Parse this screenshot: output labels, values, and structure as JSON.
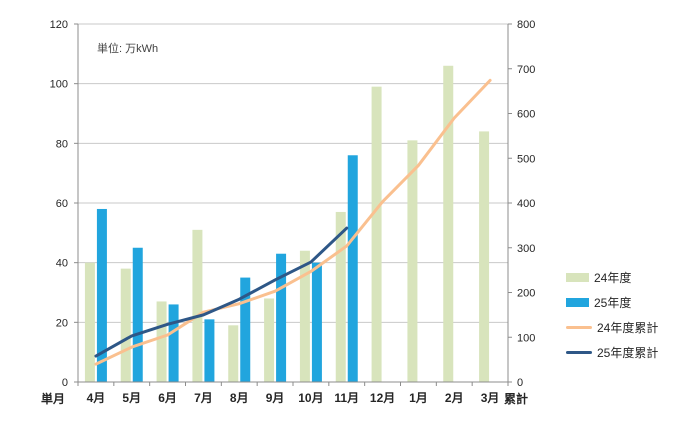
{
  "chart_data": {
    "type": "combo-bar-line",
    "title": "単位: 万kWh",
    "categories": [
      "4月",
      "5月",
      "6月",
      "7月",
      "8月",
      "9月",
      "10月",
      "11月",
      "12月",
      "1月",
      "2月",
      "3月"
    ],
    "series": [
      {
        "name": "24年度",
        "type": "bar",
        "axis": "left",
        "color": "#d8e4bc",
        "values": [
          40,
          38,
          27,
          51,
          19,
          28,
          44,
          57,
          99,
          81,
          106,
          84
        ]
      },
      {
        "name": "25年度",
        "type": "bar",
        "axis": "left",
        "color": "#21a5de",
        "values": [
          58,
          45,
          26,
          21,
          35,
          43,
          40,
          76,
          null,
          null,
          null,
          null
        ]
      },
      {
        "name": "24年度累計",
        "type": "line",
        "axis": "right",
        "color": "#fac08f",
        "values": [
          40,
          78,
          105,
          156,
          175,
          203,
          247,
          304,
          403,
          484,
          590,
          674
        ]
      },
      {
        "name": "25年度累計",
        "type": "line",
        "axis": "right",
        "color": "#2e5787",
        "values": [
          58,
          103,
          129,
          150,
          185,
          228,
          268,
          344,
          null,
          null,
          null,
          null
        ]
      }
    ],
    "left_axis": {
      "label": "単月",
      "min": 0,
      "max": 120,
      "step": 20,
      "ticks": [
        "0",
        "20",
        "40",
        "60",
        "80",
        "100",
        "120"
      ]
    },
    "right_axis": {
      "label": "累計",
      "min": 0,
      "max": 800,
      "step": 100,
      "ticks": [
        "0",
        "100",
        "200",
        "300",
        "400",
        "500",
        "600",
        "700",
        "800"
      ]
    },
    "grid": true,
    "legend_position": "right",
    "colors": {
      "gridline": "#c9c9c9",
      "axis": "#8c8c8c",
      "tick_text": "#262626"
    }
  }
}
